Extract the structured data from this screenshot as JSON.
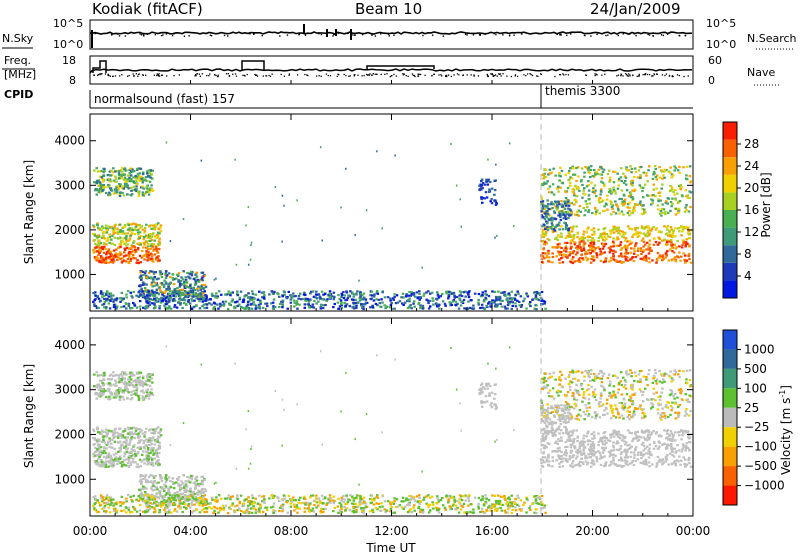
{
  "header": {
    "station": "Kodiak (fitACF)",
    "beam": "Beam 10",
    "date": "24/Jan/2009"
  },
  "chart_data": [
    {
      "type": "line",
      "panel": "N.Sky / N.Search",
      "left_label": "N.Sky",
      "right_label": "N.Search",
      "left_ticks": [
        "10^5",
        "10^0"
      ],
      "right_ticks": [
        "10^5",
        "10^0"
      ]
    },
    {
      "type": "line",
      "panel": "Frequency / Nave",
      "left_label_1": "Freq.",
      "left_label_2": "[MHz]",
      "right_label": "Nave",
      "left_ticks": [
        "18",
        "8"
      ],
      "right_ticks": [
        "60",
        "0"
      ]
    },
    {
      "type": "table",
      "panel": "CPID",
      "label": "CPID",
      "modes": [
        {
          "name": "normalsound (fast) 157",
          "start_hour": 0
        },
        {
          "name": "themis 3300",
          "start_hour": 18
        }
      ]
    },
    {
      "type": "heatmap",
      "panel": "Power",
      "ylabel": "Slant Range [km]",
      "xlabel": "Time UT",
      "ylim": [
        180,
        4600
      ],
      "xlim": [
        0,
        24
      ],
      "y_ticks": [
        "1000",
        "2000",
        "3000",
        "4000"
      ],
      "colorbar_label": "Power [dB]",
      "colorbar_ticks": [
        "4",
        "8",
        "12",
        "16",
        "20",
        "24",
        "28"
      ],
      "colorbar_range": [
        0,
        32
      ]
    },
    {
      "type": "heatmap",
      "panel": "Velocity",
      "ylabel": "Slant Range [km]",
      "xlabel": "Time UT",
      "ylim": [
        180,
        4600
      ],
      "xlim": [
        0,
        24
      ],
      "y_ticks": [
        "1000",
        "2000",
        "3000",
        "4000"
      ],
      "colorbar_label": "Velocity [m s",
      "colorbar_label_sup": "-1",
      "colorbar_label_end": "]",
      "colorbar_ticks": [
        "1000",
        "500",
        "100",
        "25",
        "−25",
        "−100",
        "−500",
        "−1000"
      ]
    }
  ],
  "time_axis": {
    "ticks": [
      "00:00",
      "04:00",
      "08:00",
      "12:00",
      "16:00",
      "20:00",
      "00:00"
    ],
    "label": "Time UT"
  },
  "colors": {
    "power": [
      "#0018e0",
      "#1f3ab8",
      "#2f6a9a",
      "#3f9a78",
      "#48b050",
      "#a8d020",
      "#f0d000",
      "#f8a000",
      "#f86000",
      "#f82000"
    ],
    "velocity": [
      "#2050d8",
      "#2f6a9a",
      "#3f9a78",
      "#5cc030",
      "#bbbbbb",
      "#f0d000",
      "#f8a000",
      "#f86000",
      "#ff1800"
    ],
    "ground_scatter": "#c0c0c0"
  }
}
